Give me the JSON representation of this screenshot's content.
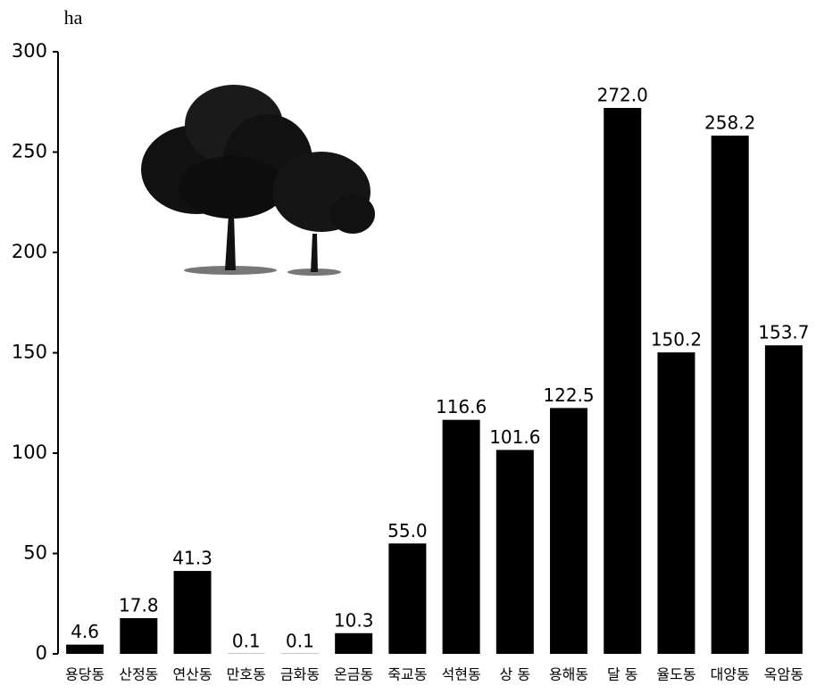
{
  "chart_data": {
    "type": "bar",
    "y_label": "ha",
    "categories": [
      "용당동",
      "산정동",
      "연산동",
      "만호동",
      "금화동",
      "온금동",
      "죽교동",
      "석현동",
      "상 동",
      "용해동",
      "달 동",
      "율도동",
      "대양동",
      "옥암동"
    ],
    "values": [
      4.6,
      17.8,
      41.3,
      0.1,
      0.1,
      10.3,
      55.0,
      116.6,
      101.6,
      122.5,
      272.0,
      150.2,
      258.2,
      153.7
    ],
    "value_labels": [
      "4.6",
      "17.8",
      "41.3",
      "0.1",
      "0.1",
      "10.3",
      "55.0",
      "116.6",
      "101.6",
      "122.5",
      "272.0",
      "150.2",
      "258.2",
      "153.7"
    ],
    "color": "#000000",
    "ylim": [
      0,
      300
    ],
    "yticks": [
      0,
      50,
      100,
      150,
      200,
      250,
      300
    ],
    "grid": false
  }
}
